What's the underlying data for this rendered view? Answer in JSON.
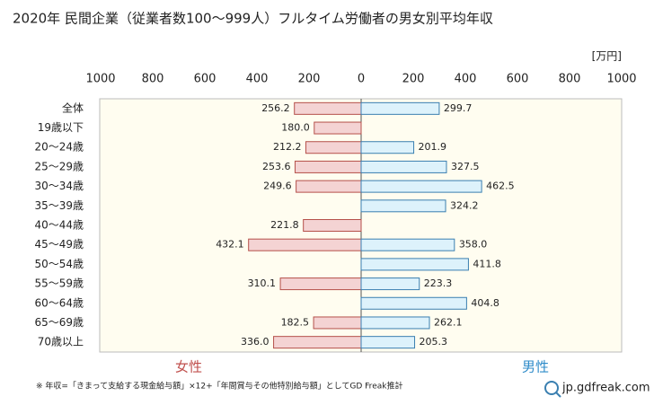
{
  "chart_data": {
    "type": "butterfly-bar",
    "title": "2020年 民間企業（従業者数100～999人）フルタイム労働者の男女別平均年収",
    "unit": "[万円]",
    "categories": [
      "全体",
      "19歳以下",
      "20～24歳",
      "25～29歳",
      "30～34歳",
      "35～39歳",
      "40～44歳",
      "45～49歳",
      "50～54歳",
      "55～59歳",
      "60～64歳",
      "65～69歳",
      "70歳以上"
    ],
    "series": [
      {
        "name": "女性",
        "side": "left",
        "color": "#f4d3d3",
        "edge": "#b5504a",
        "name_color": "#c0504d",
        "values": [
          256.2,
          180.0,
          212.2,
          253.6,
          249.6,
          null,
          221.8,
          432.1,
          null,
          310.1,
          null,
          182.5,
          336.0
        ],
        "value_labels": [
          "256.2",
          "180.0",
          "212.2",
          "253.6",
          "249.6",
          null,
          "221.8",
          "432.1",
          null,
          "310.1",
          null,
          "182.5",
          "336.0"
        ]
      },
      {
        "name": "男性",
        "side": "right",
        "color": "#ddf2fb",
        "edge": "#3a7fb0",
        "name_color": "#2e8bc9",
        "values": [
          299.7,
          null,
          201.9,
          327.5,
          462.5,
          324.2,
          null,
          358.0,
          411.8,
          223.3,
          404.8,
          262.1,
          205.3
        ],
        "value_labels": [
          "299.7",
          null,
          "201.9",
          "327.5",
          "462.5",
          "324.2",
          null,
          "358.0",
          "411.8",
          "223.3",
          "404.8",
          "262.1",
          "205.3"
        ]
      }
    ],
    "xlim": [
      0,
      1000
    ],
    "xticks": [
      0,
      200,
      400,
      600,
      800,
      1000
    ],
    "grid": false,
    "note": "※ 年収=「きまって支給する現金給与額」×12+「年間賞与その他特別給与額」としてGD Freak推計",
    "source": "jp.gdfreak.com"
  }
}
